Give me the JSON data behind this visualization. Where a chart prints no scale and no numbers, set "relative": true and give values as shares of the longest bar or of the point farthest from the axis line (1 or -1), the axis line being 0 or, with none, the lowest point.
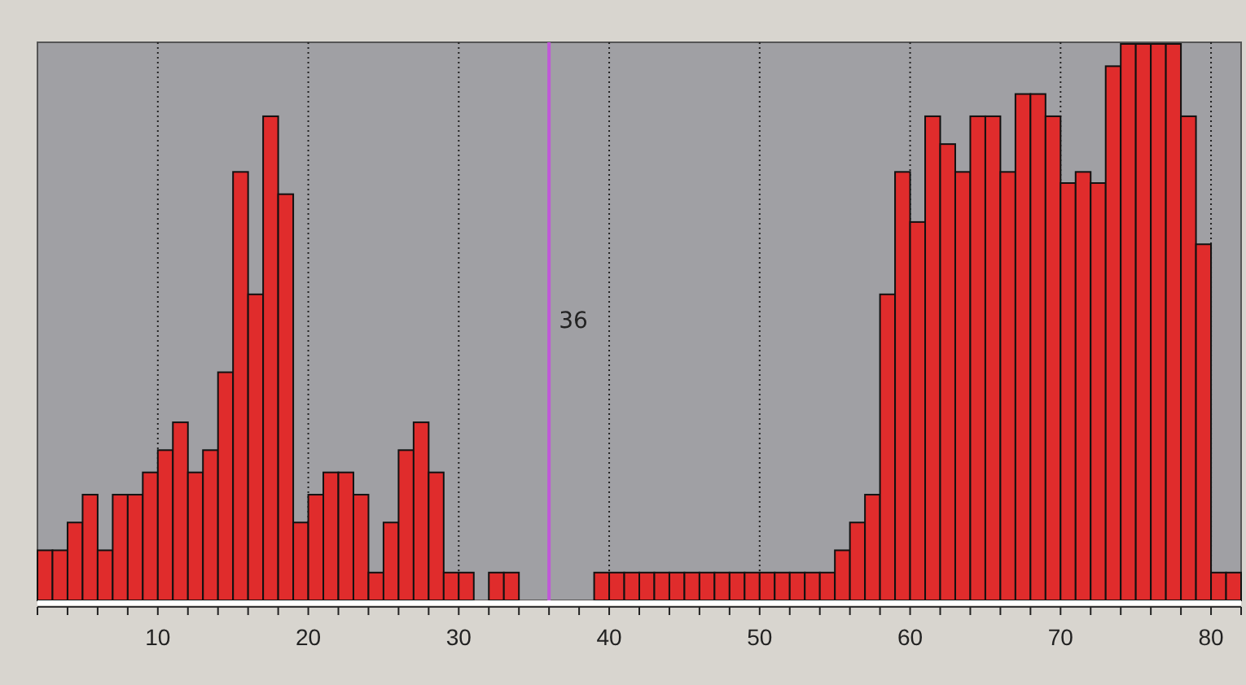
{
  "chart_data": {
    "type": "bar",
    "relative": true,
    "x": [
      2.5,
      3.5,
      4.5,
      5.5,
      6.5,
      7.5,
      8.5,
      9.5,
      10.5,
      11.5,
      12.5,
      13.5,
      14.5,
      15.5,
      16.5,
      17.5,
      18.5,
      19.5,
      20.5,
      21.5,
      22.5,
      23.5,
      24.5,
      25.5,
      26.5,
      27.5,
      28.5,
      29.5,
      30.5,
      31.5,
      32.5,
      33.5,
      34.5,
      35.5,
      36.5,
      37.5,
      38.5,
      39.5,
      40.5,
      41.5,
      42.5,
      43.5,
      44.5,
      45.5,
      46.5,
      47.5,
      48.5,
      49.5,
      50.5,
      51.5,
      52.5,
      53.5,
      54.5,
      55.5,
      56.5,
      57.5,
      58.5,
      59.5,
      60.5,
      61.5,
      62.5,
      63.5,
      64.5,
      65.5,
      66.5,
      67.5,
      68.5,
      69.5,
      70.5,
      71.5,
      72.5,
      73.5,
      74.5,
      75.5,
      76.5,
      77.5,
      78.5,
      79.5,
      80.5,
      81.5
    ],
    "values": [
      0.09,
      0.09,
      0.14,
      0.19,
      0.09,
      0.19,
      0.19,
      0.23,
      0.27,
      0.32,
      0.23,
      0.27,
      0.41,
      0.77,
      0.55,
      0.87,
      0.73,
      0.14,
      0.19,
      0.23,
      0.23,
      0.19,
      0.05,
      0.14,
      0.27,
      0.32,
      0.23,
      0.05,
      0.05,
      0,
      0.05,
      0.05,
      0,
      0,
      0,
      0,
      0,
      0.05,
      0.05,
      0.05,
      0.05,
      0.05,
      0.05,
      0.05,
      0.05,
      0.05,
      0.05,
      0.05,
      0.05,
      0.05,
      0.05,
      0.05,
      0.05,
      0.09,
      0.14,
      0.19,
      0.55,
      0.77,
      0.68,
      0.87,
      0.82,
      0.77,
      0.87,
      0.87,
      0.77,
      0.91,
      0.91,
      0.87,
      0.75,
      0.77,
      0.75,
      0.96,
      1,
      1,
      1,
      1,
      0.87,
      0.64,
      0.05,
      0.05
    ],
    "color": "#e02c2c",
    "xlim": [
      2,
      82
    ],
    "xticks": [
      {
        "value": 2,
        "label": null
      },
      {
        "value": 4,
        "label": null
      },
      {
        "value": 6,
        "label": null
      },
      {
        "value": 8,
        "label": null
      },
      10,
      {
        "value": 12,
        "label": null
      },
      {
        "value": 14,
        "label": null
      },
      {
        "value": 16,
        "label": null
      },
      {
        "value": 18,
        "label": null
      },
      20,
      {
        "value": 22,
        "label": null
      },
      {
        "value": 24,
        "label": null
      },
      {
        "value": 26,
        "label": null
      },
      {
        "value": 28,
        "label": null
      },
      30,
      {
        "value": 32,
        "label": null
      },
      {
        "value": 34,
        "label": null
      },
      {
        "value": 36,
        "label": null
      },
      {
        "value": 38,
        "label": null
      },
      40,
      {
        "value": 42,
        "label": null
      },
      {
        "value": 44,
        "label": null
      },
      {
        "value": 46,
        "label": null
      },
      {
        "value": 48,
        "label": null
      },
      50,
      {
        "value": 52,
        "label": null
      },
      {
        "value": 54,
        "label": null
      },
      {
        "value": 56,
        "label": null
      },
      {
        "value": 58,
        "label": null
      },
      60,
      {
        "value": 62,
        "label": null
      },
      {
        "value": 64,
        "label": null
      },
      {
        "value": 66,
        "label": null
      },
      {
        "value": 68,
        "label": null
      },
      70,
      {
        "value": 72,
        "label": null
      },
      {
        "value": 74,
        "label": null
      },
      {
        "value": 76,
        "label": null
      },
      {
        "value": 78,
        "label": null
      },
      80,
      {
        "value": 82,
        "label": null
      }
    ],
    "grid": "x",
    "ref_lines": [
      {
        "axis": "x",
        "value": 36,
        "label": "36",
        "color": "#c058d8"
      }
    ]
  }
}
